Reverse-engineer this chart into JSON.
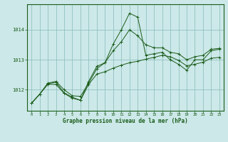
{
  "background_color": "#cce8e8",
  "grid_color": "#88bbbb",
  "line_color": "#1a5c1a",
  "title": "Graphe pression niveau de la mer (hPa)",
  "ylim": [
    1011.3,
    1014.85
  ],
  "yticks": [
    1012,
    1013,
    1014
  ],
  "n_hours": 24,
  "actual": [
    1011.55,
    1011.85,
    1012.2,
    1012.25,
    1011.9,
    1011.75,
    1011.65,
    1012.28,
    1012.78,
    1012.9,
    1013.52,
    1014.0,
    1014.55,
    1014.42,
    1013.15,
    1013.2,
    1013.25,
    1013.0,
    1012.85,
    1012.65,
    1013.0,
    1013.0,
    1013.3,
    1013.35
  ],
  "minline": [
    1011.55,
    1011.85,
    1012.18,
    1012.18,
    1011.88,
    1011.72,
    1011.65,
    1012.18,
    1012.52,
    1012.6,
    1012.72,
    1012.82,
    1012.9,
    1012.95,
    1013.02,
    1013.08,
    1013.15,
    1013.1,
    1012.98,
    1012.8,
    1012.85,
    1012.92,
    1013.05,
    1013.08
  ],
  "maxline": [
    1011.55,
    1011.85,
    1012.22,
    1012.28,
    1012.0,
    1011.8,
    1011.78,
    1012.22,
    1012.7,
    1012.9,
    1013.3,
    1013.6,
    1014.0,
    1013.8,
    1013.5,
    1013.4,
    1013.4,
    1013.25,
    1013.2,
    1013.0,
    1013.1,
    1013.15,
    1013.35,
    1013.38
  ]
}
